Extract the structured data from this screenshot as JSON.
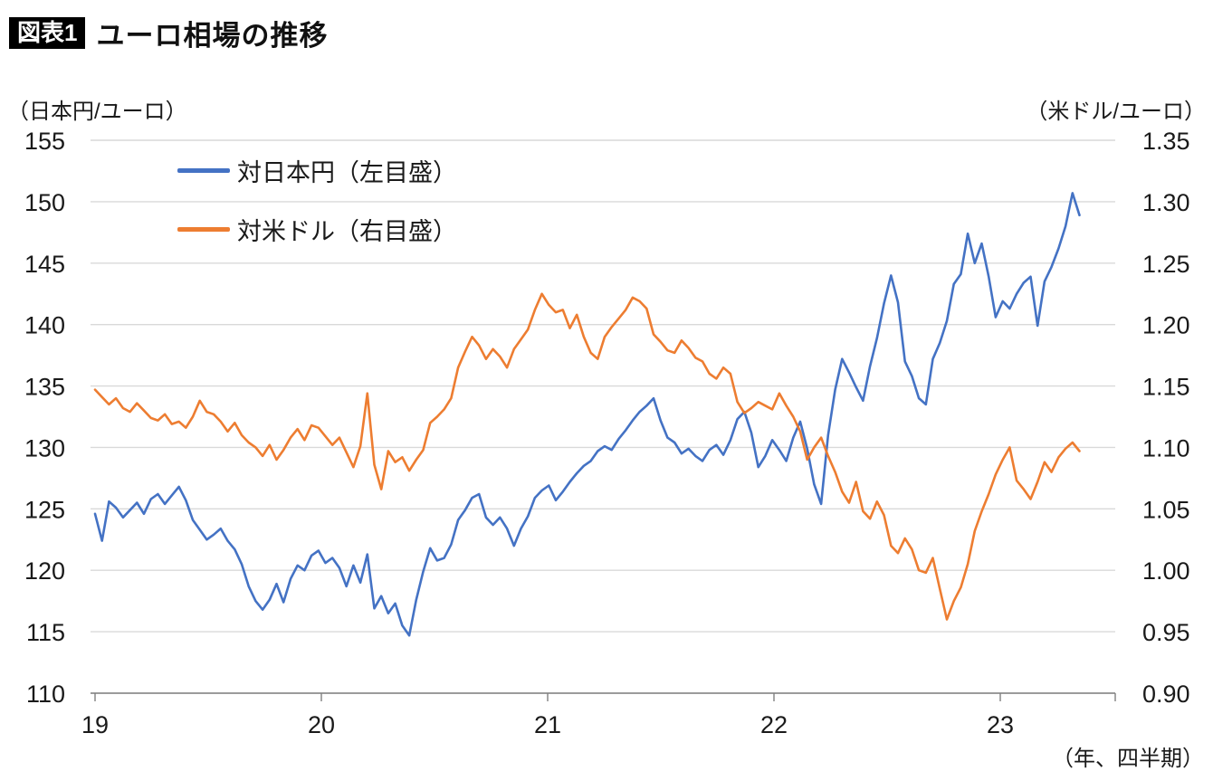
{
  "header": {
    "badge": "図表1",
    "title": "ユーロ相場の推移"
  },
  "axes": {
    "left_unit": "（日本円/ユーロ）",
    "right_unit": "（米ドル/ユーロ）",
    "x_note": "（年、四半期）",
    "left_ticks": [
      "155",
      "150",
      "145",
      "140",
      "135",
      "130",
      "125",
      "120",
      "115",
      "110"
    ],
    "right_ticks": [
      "1.35",
      "1.30",
      "1.25",
      "1.20",
      "1.15",
      "1.10",
      "1.05",
      "1.00",
      "0.95",
      "0.90"
    ],
    "x_ticks": [
      "19",
      "20",
      "21",
      "22",
      "23"
    ]
  },
  "legend": [
    {
      "label": "対日本円（左目盛）",
      "color": "#4472C4"
    },
    {
      "label": "対米ドル（右目盛）",
      "color": "#ED7D31"
    }
  ],
  "colors": {
    "jpy_line": "#4472C4",
    "usd_line": "#ED7D31",
    "gridline": "#D9D9D9",
    "axis": "#808080",
    "text": "#1a1a1a"
  },
  "chart_data": {
    "type": "line",
    "title": "ユーロ相場の推移",
    "x_label": "（年、四半期）",
    "x_start": 19.0,
    "x_end": 23.35,
    "x_tick_values": [
      19,
      20,
      21,
      22,
      23
    ],
    "left_axis": {
      "label": "（日本円/ユーロ）",
      "range": [
        110,
        155
      ],
      "tick_step": 5
    },
    "right_axis": {
      "label": "（米ドル/ユーロ）",
      "range": [
        0.9,
        1.35
      ],
      "tick_step": 0.05
    },
    "grid": true,
    "legend_position": "top-left-inside",
    "series": [
      {
        "key": "jpy",
        "name": "対日本円（左目盛）",
        "axis": "left",
        "color": "#4472C4",
        "values": [
          124.6,
          122.4,
          125.6,
          125.1,
          124.3,
          124.9,
          125.5,
          124.6,
          125.8,
          126.2,
          125.4,
          126.1,
          126.8,
          125.7,
          124.1,
          123.3,
          122.5,
          122.9,
          123.4,
          122.4,
          121.7,
          120.5,
          118.7,
          117.5,
          116.8,
          117.6,
          118.9,
          117.4,
          119.3,
          120.4,
          120.0,
          121.2,
          121.6,
          120.6,
          121.0,
          120.2,
          118.7,
          120.4,
          119.0,
          121.3,
          116.9,
          117.9,
          116.5,
          117.3,
          115.5,
          114.7,
          117.6,
          119.9,
          121.8,
          120.8,
          121.0,
          122.1,
          124.1,
          124.9,
          125.9,
          126.2,
          124.3,
          123.7,
          124.3,
          123.4,
          122.0,
          123.4,
          124.4,
          125.9,
          126.5,
          126.9,
          125.7,
          126.4,
          127.2,
          127.9,
          128.5,
          128.9,
          129.7,
          130.1,
          129.8,
          130.7,
          131.4,
          132.2,
          132.9,
          133.4,
          134.0,
          132.2,
          130.8,
          130.4,
          129.5,
          129.9,
          129.3,
          128.9,
          129.8,
          130.2,
          129.4,
          130.6,
          132.3,
          132.9,
          131.2,
          128.4,
          129.3,
          130.6,
          129.8,
          128.9,
          130.8,
          132.1,
          129.9,
          127.0,
          125.4,
          131.0,
          134.7,
          137.2,
          136.1,
          134.9,
          133.8,
          136.6,
          138.9,
          141.7,
          144.0,
          141.8,
          137.0,
          135.8,
          134.0,
          133.5,
          137.2,
          138.5,
          140.3,
          143.3,
          144.1,
          147.4,
          145.0,
          146.6,
          143.9,
          140.6,
          141.9,
          141.3,
          142.5,
          143.4,
          143.9,
          139.9,
          143.5,
          144.7,
          146.2,
          148.0,
          150.7,
          148.9
        ]
      },
      {
        "key": "usd",
        "name": "対米ドル（右目盛）",
        "axis": "right",
        "color": "#ED7D31",
        "values": [
          1.147,
          1.141,
          1.135,
          1.14,
          1.132,
          1.129,
          1.136,
          1.13,
          1.124,
          1.122,
          1.127,
          1.119,
          1.121,
          1.116,
          1.125,
          1.138,
          1.129,
          1.127,
          1.121,
          1.113,
          1.12,
          1.11,
          1.104,
          1.1,
          1.093,
          1.102,
          1.09,
          1.098,
          1.108,
          1.115,
          1.106,
          1.118,
          1.116,
          1.109,
          1.102,
          1.108,
          1.096,
          1.084,
          1.101,
          1.144,
          1.086,
          1.066,
          1.097,
          1.088,
          1.092,
          1.081,
          1.09,
          1.098,
          1.12,
          1.125,
          1.131,
          1.14,
          1.165,
          1.178,
          1.19,
          1.183,
          1.172,
          1.18,
          1.174,
          1.165,
          1.18,
          1.188,
          1.196,
          1.212,
          1.225,
          1.216,
          1.21,
          1.212,
          1.197,
          1.208,
          1.19,
          1.177,
          1.172,
          1.19,
          1.198,
          1.205,
          1.212,
          1.222,
          1.219,
          1.213,
          1.192,
          1.186,
          1.179,
          1.177,
          1.187,
          1.181,
          1.173,
          1.17,
          1.16,
          1.156,
          1.165,
          1.16,
          1.137,
          1.128,
          1.132,
          1.137,
          1.134,
          1.131,
          1.144,
          1.134,
          1.125,
          1.113,
          1.09,
          1.1,
          1.108,
          1.093,
          1.08,
          1.064,
          1.055,
          1.072,
          1.048,
          1.042,
          1.056,
          1.045,
          1.02,
          1.014,
          1.026,
          1.017,
          1.0,
          0.998,
          1.01,
          0.985,
          0.96,
          0.975,
          0.986,
          1.005,
          1.032,
          1.048,
          1.062,
          1.078,
          1.09,
          1.1,
          1.073,
          1.066,
          1.058,
          1.072,
          1.088,
          1.08,
          1.092,
          1.099,
          1.104,
          1.097
        ]
      }
    ]
  }
}
